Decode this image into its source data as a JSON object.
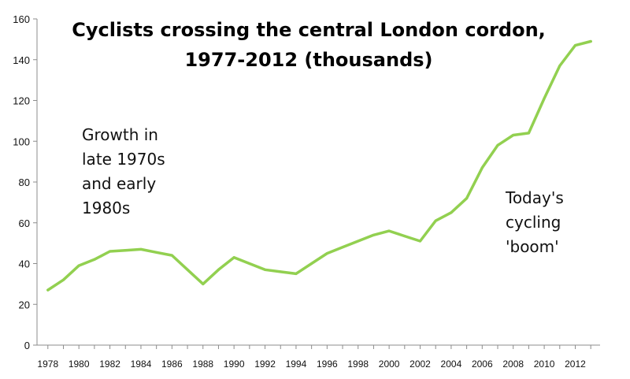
{
  "chart_data": {
    "type": "line",
    "title_lines": [
      "Cyclists crossing the central London cordon,",
      "1977-2012 (thousands)"
    ],
    "xlabel": "",
    "ylabel": "",
    "ylim": [
      0,
      160
    ],
    "y_ticks": [
      "0",
      "20",
      "40",
      "60",
      "80",
      "100",
      "120",
      "140",
      "160"
    ],
    "x_ticks": [
      "1978",
      "1980",
      "1982",
      "1984",
      "1986",
      "1988",
      "1990",
      "1992",
      "1994",
      "1996",
      "1998",
      "2000",
      "2002",
      "2004",
      "2006",
      "2008",
      "2010",
      "2012"
    ],
    "grid": false,
    "series_color": "#92d050",
    "series": [
      {
        "x": [
          1978,
          1979,
          1980,
          1981,
          1982,
          1983,
          1984,
          1985,
          1986,
          1987,
          1988,
          1989,
          1990,
          1991,
          1992,
          1993,
          1994,
          1995,
          1996,
          1997,
          1998,
          1999,
          2000,
          2001,
          2002,
          2003,
          2004,
          2005,
          2006,
          2007,
          2008,
          2009,
          2010,
          2011,
          2012,
          2013
        ],
        "values": [
          27,
          32,
          39,
          42,
          46,
          46.5,
          47,
          45.5,
          44,
          37,
          30,
          37,
          43,
          40,
          37,
          36,
          35,
          40,
          45,
          48,
          51,
          54,
          56,
          53.5,
          51,
          61,
          65,
          72,
          87,
          98,
          103,
          104,
          121,
          137,
          147,
          149
        ]
      }
    ],
    "annotations": [
      {
        "lines": [
          "Growth in",
          "late 1970s",
          "and early",
          "1980s"
        ]
      },
      {
        "lines": [
          "Today's",
          "cycling",
          "'boom'"
        ]
      }
    ]
  }
}
